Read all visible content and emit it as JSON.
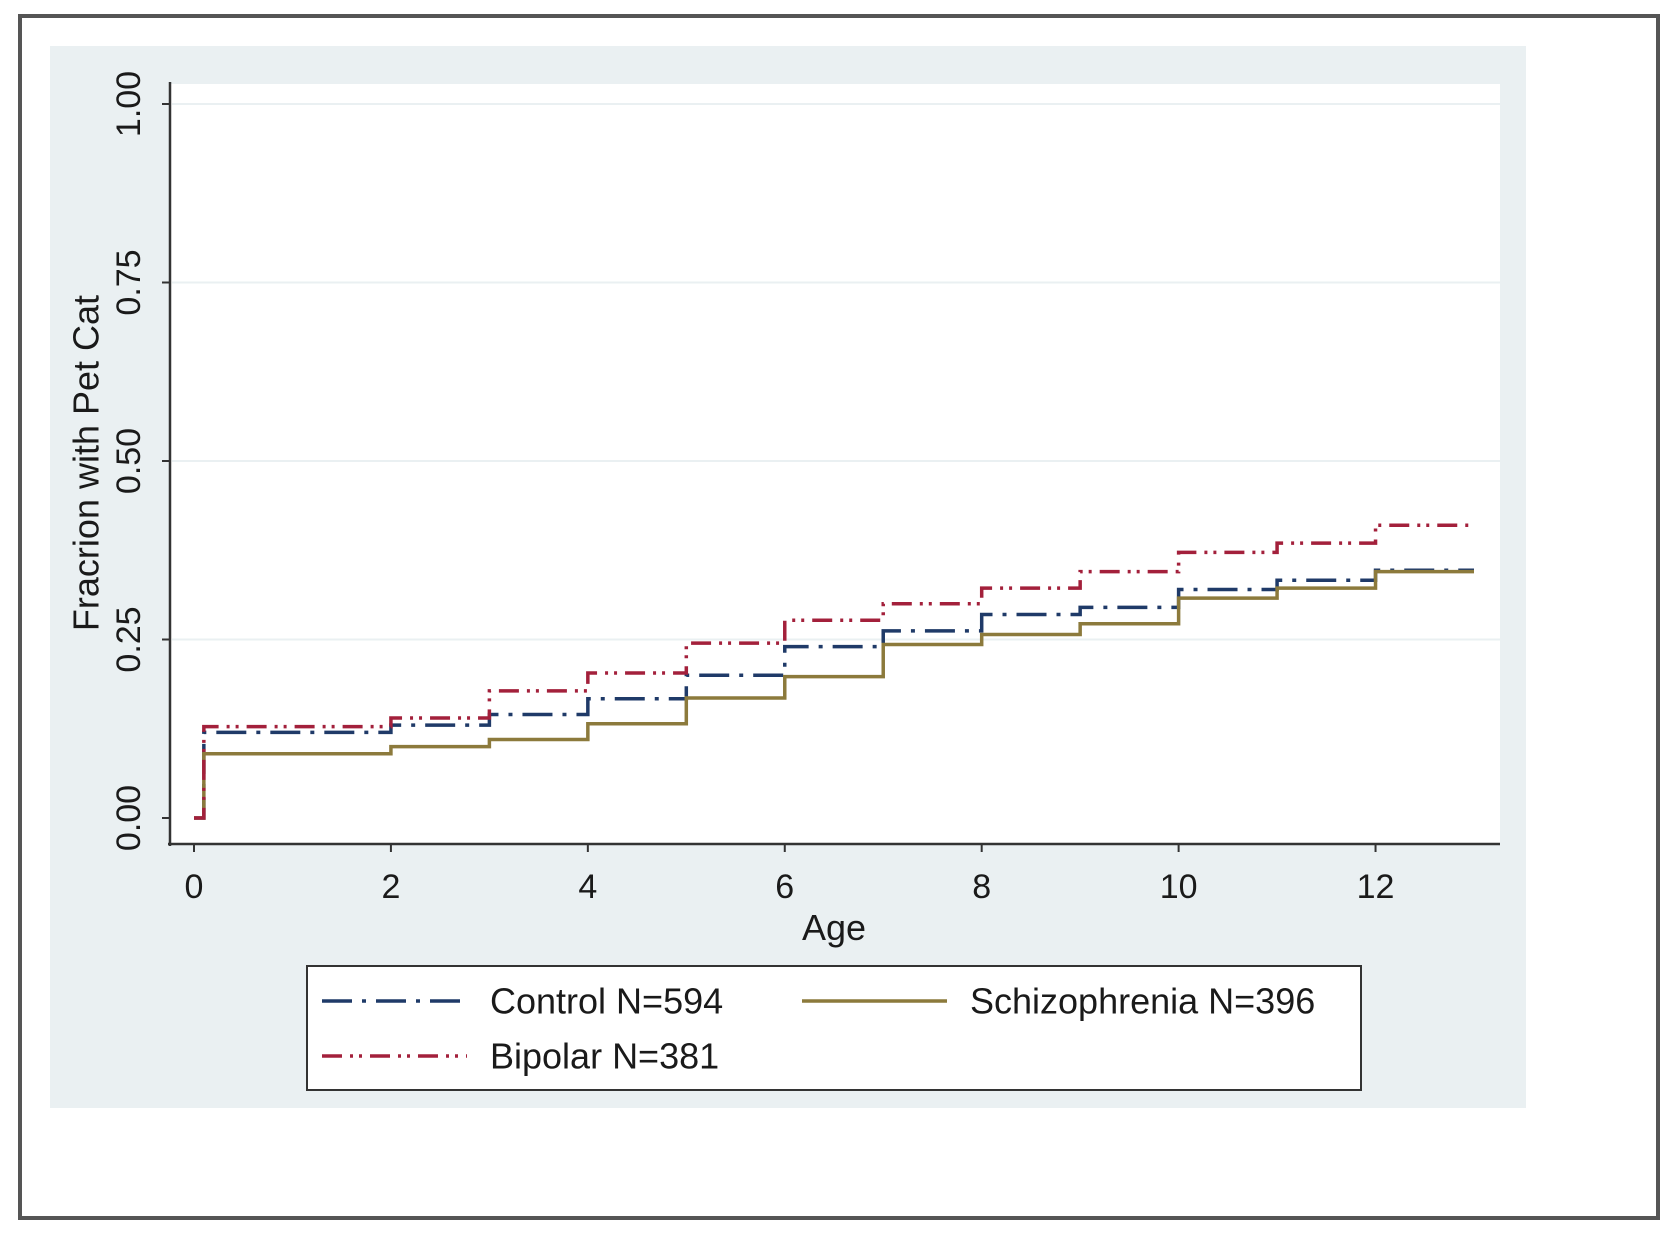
{
  "chart_data": {
    "type": "line",
    "step": true,
    "title": "",
    "xlabel": "Age",
    "ylabel": "Fracrion with Pet Cat",
    "xlim": [
      0,
      13
    ],
    "ylim": [
      0,
      1
    ],
    "x_ticks": [
      "0",
      "2",
      "4",
      "6",
      "8",
      "10",
      "12"
    ],
    "y_ticks": [
      "0.00",
      "0.25",
      "0.50",
      "0.75",
      "1.00"
    ],
    "grid": true,
    "legend_position": "bottom",
    "series": [
      {
        "name": "Control N=594",
        "color": "#1f3a68",
        "style": "long-dash-dot",
        "x": [
          0,
          0.1,
          2,
          3,
          4,
          5,
          6,
          7,
          8,
          9,
          10,
          11,
          12,
          13
        ],
        "values": [
          0,
          0.12,
          0.13,
          0.145,
          0.167,
          0.2,
          0.24,
          0.262,
          0.285,
          0.295,
          0.32,
          0.333,
          0.347,
          0.347
        ]
      },
      {
        "name": "Schizophrenia N=396",
        "color": "#8c7a3c",
        "style": "solid",
        "x": [
          0,
          0.1,
          2,
          3,
          4,
          5,
          6,
          7,
          8,
          9,
          10,
          11,
          12,
          13
        ],
        "values": [
          0,
          0.09,
          0.1,
          0.11,
          0.132,
          0.168,
          0.198,
          0.243,
          0.257,
          0.272,
          0.308,
          0.322,
          0.345,
          0.345
        ]
      },
      {
        "name": "Bipolar N=381",
        "color": "#a3203b",
        "style": "dash-dot-dot",
        "x": [
          0,
          0.1,
          2,
          3,
          4,
          5,
          6,
          7,
          8,
          9,
          10,
          11,
          12,
          13
        ],
        "values": [
          0,
          0.128,
          0.14,
          0.178,
          0.203,
          0.245,
          0.277,
          0.3,
          0.322,
          0.345,
          0.372,
          0.385,
          0.41,
          0.41
        ]
      }
    ]
  }
}
